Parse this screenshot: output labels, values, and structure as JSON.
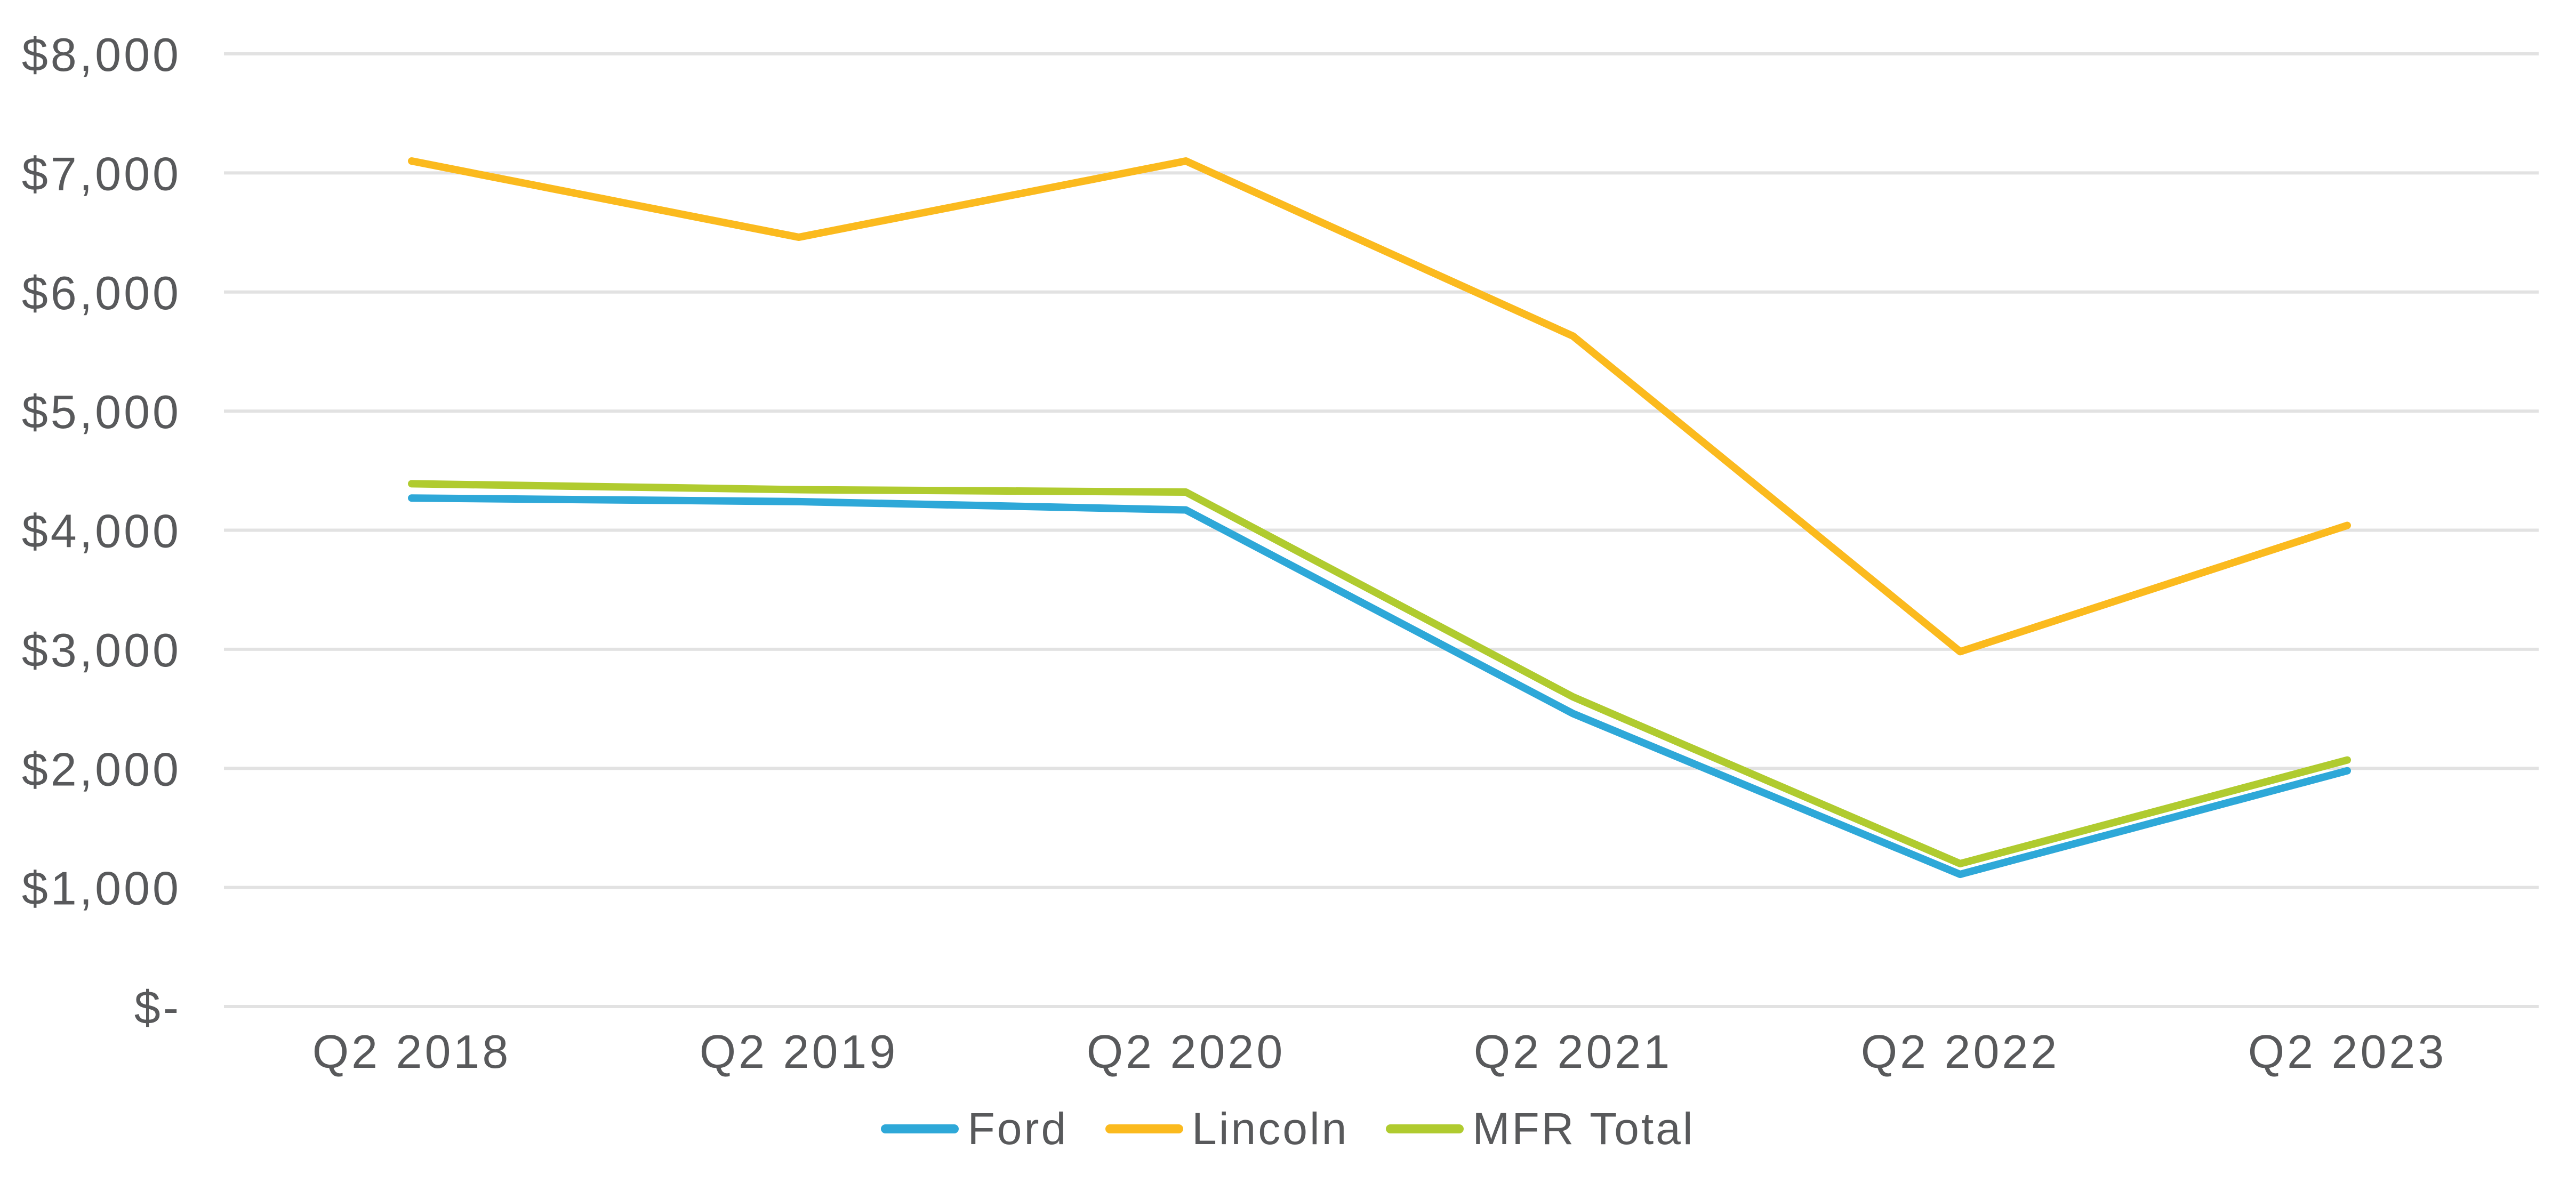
{
  "colors": {
    "background": "#FFFFFF",
    "gridline": "#E2E2E2",
    "axis_text": "#58595B",
    "ford_blue": "#2EA8D8",
    "lincoln_yellow": "#FBBA1E",
    "mfr_green": "#B0CB2F"
  },
  "chart_data": {
    "type": "line",
    "categories": [
      "Q2 2018",
      "Q2 2019",
      "Q2 2020",
      "Q2 2021",
      "Q2 2022",
      "Q2 2023"
    ],
    "series": [
      {
        "name": "Ford",
        "color": "#2EA8D8",
        "values": [
          4270,
          4240,
          4170,
          2460,
          1110,
          1980
        ]
      },
      {
        "name": "Lincoln",
        "color": "#FBBA1E",
        "values": [
          7100,
          6460,
          7100,
          5630,
          2980,
          4040
        ]
      },
      {
        "name": "MFR Total",
        "color": "#B0CB2F",
        "values": [
          4390,
          4340,
          4320,
          2600,
          1200,
          2070
        ]
      }
    ],
    "y_axis": {
      "min": 0,
      "max": 8000,
      "step": 1000,
      "tick_labels": [
        "$-",
        "$1,000",
        "$2,000",
        "$3,000",
        "$4,000",
        "$5,000",
        "$6,000",
        "$7,000",
        "$8,000"
      ]
    },
    "xlabel": "",
    "ylabel": "",
    "grid": "horizontal",
    "legend_position": "bottom-center"
  }
}
